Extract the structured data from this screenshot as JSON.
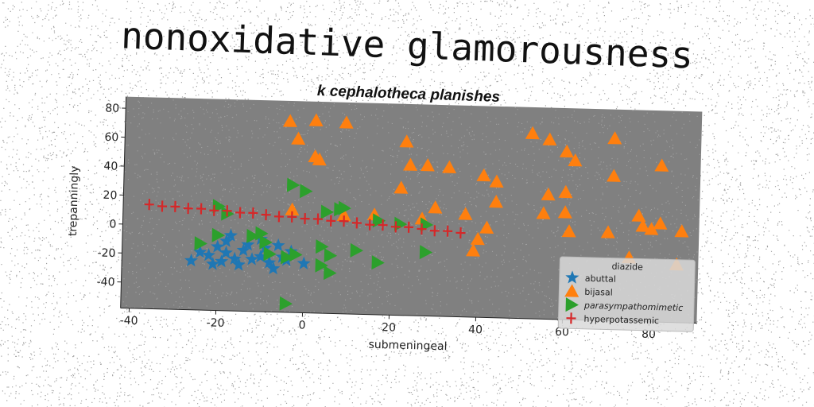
{
  "page_title": "nonoxidative glamorousness",
  "chart_data": {
    "type": "scatter",
    "title": "k cephalotheca planishes",
    "xlabel": "submeningeal",
    "ylabel": "trepanningly",
    "xlim": [
      -42,
      91
    ],
    "ylim": [
      -58,
      88
    ],
    "xticks": [
      -40,
      -20,
      0,
      20,
      40,
      60,
      80
    ],
    "yticks": [
      -40,
      -20,
      0,
      20,
      40,
      60,
      80
    ],
    "grid": false,
    "legend": {
      "title": "diazide",
      "position": "lower-right"
    },
    "plot_background": "#808080",
    "series": [
      {
        "name": "abuttal",
        "marker": "star",
        "color": "#1f77b4",
        "points": [
          [
            -26,
            -24
          ],
          [
            -24,
            -18
          ],
          [
            -22,
            -20
          ],
          [
            -21,
            -26
          ],
          [
            -20,
            -14
          ],
          [
            -19,
            -24
          ],
          [
            -18,
            -10
          ],
          [
            -18,
            -18
          ],
          [
            -17,
            -6
          ],
          [
            -16,
            -22
          ],
          [
            -15,
            -26
          ],
          [
            -14,
            -16
          ],
          [
            -13,
            -12
          ],
          [
            -12,
            -22
          ],
          [
            -10,
            -8
          ],
          [
            -10,
            -20
          ],
          [
            -9,
            -14
          ],
          [
            -8,
            -24
          ],
          [
            -7,
            -28
          ],
          [
            -6,
            -12
          ],
          [
            -5,
            -20
          ],
          [
            -4,
            -22
          ],
          [
            -3,
            -16
          ],
          [
            0,
            -24
          ]
        ]
      },
      {
        "name": "bijasal",
        "marker": "triangle-up",
        "color": "#ff7f0e",
        "points": [
          [
            -4,
            74
          ],
          [
            2,
            75
          ],
          [
            9,
            74
          ],
          [
            -2,
            62
          ],
          [
            2,
            50
          ],
          [
            3,
            48
          ],
          [
            52,
            70
          ],
          [
            56,
            66
          ],
          [
            60,
            58
          ],
          [
            62,
            52
          ],
          [
            71,
            68
          ],
          [
            82,
            50
          ],
          [
            71,
            42
          ],
          [
            23,
            62
          ],
          [
            24,
            46
          ],
          [
            28,
            46
          ],
          [
            33,
            45
          ],
          [
            22,
            30
          ],
          [
            41,
            40
          ],
          [
            44,
            36
          ],
          [
            44,
            22
          ],
          [
            56,
            28
          ],
          [
            60,
            30
          ],
          [
            55,
            15
          ],
          [
            60,
            16
          ],
          [
            30,
            17
          ],
          [
            37,
            13
          ],
          [
            42,
            4
          ],
          [
            40,
            -4
          ],
          [
            39,
            -12
          ],
          [
            -3,
            13
          ],
          [
            9,
            10
          ],
          [
            16,
            11
          ],
          [
            27,
            9
          ],
          [
            61,
            3
          ],
          [
            70,
            3
          ],
          [
            77,
            15
          ],
          [
            78,
            8
          ],
          [
            80,
            6
          ],
          [
            82,
            10
          ],
          [
            87,
            5
          ],
          [
            75,
            -14
          ],
          [
            86,
            -18
          ]
        ]
      },
      {
        "name": "parasympathomimetic",
        "marker": "triangle-right",
        "color": "#2ca02c",
        "points": [
          [
            -3,
            30
          ],
          [
            0,
            26
          ],
          [
            -20,
            14
          ],
          [
            -18,
            9
          ],
          [
            -20,
            -6
          ],
          [
            -24,
            -12
          ],
          [
            -12,
            -6
          ],
          [
            -10,
            -4
          ],
          [
            -9,
            -10
          ],
          [
            -8,
            -18
          ],
          [
            -4,
            -20
          ],
          [
            -2,
            -18
          ],
          [
            5,
            12
          ],
          [
            8,
            14
          ],
          [
            9,
            15
          ],
          [
            17,
            7
          ],
          [
            22,
            5
          ],
          [
            28,
            5
          ],
          [
            28,
            -14
          ],
          [
            4,
            -12
          ],
          [
            6,
            -18
          ],
          [
            4,
            -25
          ],
          [
            6,
            -30
          ],
          [
            12,
            -14
          ],
          [
            17,
            -22
          ],
          [
            -4,
            -52
          ]
        ]
      },
      {
        "name": "hyperpotassemic",
        "marker": "plus",
        "color": "#d62728",
        "points": [
          [
            -36,
            14
          ],
          [
            -33,
            13
          ],
          [
            -30,
            13
          ],
          [
            -27,
            12
          ],
          [
            -24,
            12
          ],
          [
            -21,
            11
          ],
          [
            -18,
            11
          ],
          [
            -15,
            10
          ],
          [
            -12,
            10
          ],
          [
            -9,
            9
          ],
          [
            -6,
            8
          ],
          [
            -3,
            8
          ],
          [
            0,
            7
          ],
          [
            3,
            7
          ],
          [
            6,
            6
          ],
          [
            9,
            6
          ],
          [
            12,
            5
          ],
          [
            15,
            4
          ],
          [
            18,
            4
          ],
          [
            21,
            3
          ],
          [
            24,
            3
          ],
          [
            27,
            2
          ],
          [
            30,
            1
          ],
          [
            33,
            1
          ],
          [
            36,
            0
          ]
        ]
      }
    ]
  }
}
